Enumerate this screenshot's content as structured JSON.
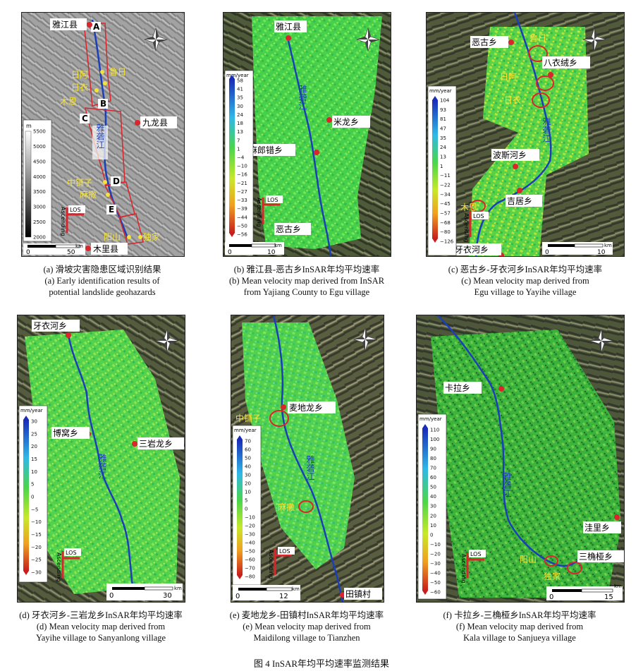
{
  "figure_caption": "图 4 InSAR年均平均速率监测结果",
  "colors": {
    "river": "#1a3fb8",
    "town": "#d9252b",
    "outline": "#d9252b",
    "circle": "#d9252b",
    "label_bg": "#ffffff",
    "yellow_label": "#f5e33a"
  },
  "panels": [
    {
      "id": "a",
      "caption_cn": "(a) 滑坡灾害隐患区域识别结果",
      "caption_en1": "(a) Early identification results of",
      "caption_en2": "potential landslide geohazards",
      "colorbar_unit": "m",
      "colorbar_ticks": [
        "5500",
        "5000",
        "4500",
        "4000",
        "3500",
        "3000",
        "2500",
        "2000"
      ],
      "scale": {
        "zero": "0",
        "value": "50",
        "unit": "km"
      },
      "towns": [
        "雅江县",
        "九龙县",
        "木里县"
      ],
      "river": "雅砻江",
      "zones": [
        "A",
        "B",
        "C",
        "D",
        "E"
      ],
      "sites": [
        "日阿",
        "鲁日",
        "日衣",
        "木恩",
        "中铺子",
        "麻撒",
        "阳山",
        "独家"
      ],
      "los": "LOS",
      "ascending": "Ascending"
    },
    {
      "id": "b",
      "caption_cn": "(b) 雅江县-恶古乡InSAR年均平均速率",
      "caption_en1": "(b) Mean velocity map derived from InSAR",
      "caption_en2": "from Yajiang County to Egu village",
      "colorbar_unit": "mm/year",
      "colorbar_ticks": [
        "58",
        "41",
        "35",
        "30",
        "24",
        "18",
        "13",
        "7",
        "1",
        "−4",
        "−10",
        "−16",
        "−21",
        "−27",
        "−33",
        "−39",
        "−44",
        "−50",
        "−56"
      ],
      "scale": {
        "zero": "0",
        "value": "10",
        "unit": "km"
      },
      "towns": [
        "雅江县",
        "米龙乡",
        "麻郎错乡",
        "恶古乡"
      ],
      "river": "雅砻江",
      "los": "LOS",
      "ascending": "Ascending"
    },
    {
      "id": "c",
      "caption_cn": "(c) 恶古乡-牙衣河乡InSAR年均平均速率",
      "caption_en1": "(c) Mean velocity map derived from",
      "caption_en2": "Egu village to Yayihe village",
      "colorbar_unit": "mm/year",
      "colorbar_ticks": [
        "104",
        "93",
        "81",
        "47",
        "35",
        "24",
        "13",
        "1",
        "−11",
        "−22",
        "−34",
        "−45",
        "−57",
        "−68",
        "−80",
        "−126"
      ],
      "scale": {
        "zero": "0",
        "value": "10",
        "unit": "km"
      },
      "towns": [
        "恶古乡",
        "八衣绒乡",
        "波斯河乡",
        "吉居乡",
        "牙衣河乡"
      ],
      "river": "雅砻江",
      "sites": [
        "鲁日",
        "日阿",
        "日衣",
        "木恩"
      ],
      "los": "LOS",
      "ascending": "Ascending"
    },
    {
      "id": "d",
      "caption_cn": "(d) 牙衣河乡-三岩龙乡InSAR年均平均速率",
      "caption_en1": "(d) Mean velocity map derived from",
      "caption_en2": "Yayihe village to Sanyanlong village",
      "colorbar_unit": "mm/year",
      "colorbar_ticks": [
        "30",
        "25",
        "20",
        "15",
        "10",
        "5",
        "0",
        "−5",
        "−10",
        "−15",
        "−20",
        "−25",
        "−30"
      ],
      "scale": {
        "zero": "0",
        "value": "30",
        "unit": "km"
      },
      "towns": [
        "牙衣河乡",
        "博窝乡",
        "三岩龙乡"
      ],
      "river": "雅砻江",
      "los": "LOS",
      "ascending": "Ascending"
    },
    {
      "id": "e",
      "caption_cn": "(e) 麦地龙乡-田镇村InSAR年均平均速率",
      "caption_en1": "(e) Mean velocity map derived from",
      "caption_en2": "Maidilong village to Tianzhen",
      "colorbar_unit": "mm/year",
      "colorbar_ticks": [
        "70",
        "60",
        "50",
        "40",
        "30",
        "20",
        "10",
        "5",
        "0",
        "−10",
        "−20",
        "−30",
        "−40",
        "−50",
        "−60",
        "−70",
        "−80"
      ],
      "scale": {
        "zero": "0",
        "value": "12",
        "unit": "km"
      },
      "towns": [
        "麦地龙乡",
        "田镇村"
      ],
      "river": "雅砻江",
      "sites": [
        "中铺子",
        "麻撒"
      ],
      "los": "LOS",
      "ascending": "Ascending"
    },
    {
      "id": "f",
      "caption_cn": "(f) 卡拉乡-三桷桠乡InSAR年均平均速率",
      "caption_en1": "(f) Mean velocity map derived from",
      "caption_en2": "Kala village to Sanjueya village",
      "colorbar_unit": "mm/year",
      "colorbar_ticks": [
        "110",
        "100",
        "90",
        "80",
        "70",
        "60",
        "50",
        "40",
        "30",
        "20",
        "10",
        "0",
        "−10",
        "−20",
        "−30",
        "−40",
        "−50",
        "−60"
      ],
      "scale": {
        "zero": "0",
        "value": "15",
        "unit": "km"
      },
      "towns": [
        "卡拉乡",
        "洼里乡",
        "三桷桠乡"
      ],
      "river": "雅砻江",
      "sites": [
        "阳山",
        "独家"
      ],
      "los": "LOS",
      "ascending": "Ascending"
    }
  ]
}
